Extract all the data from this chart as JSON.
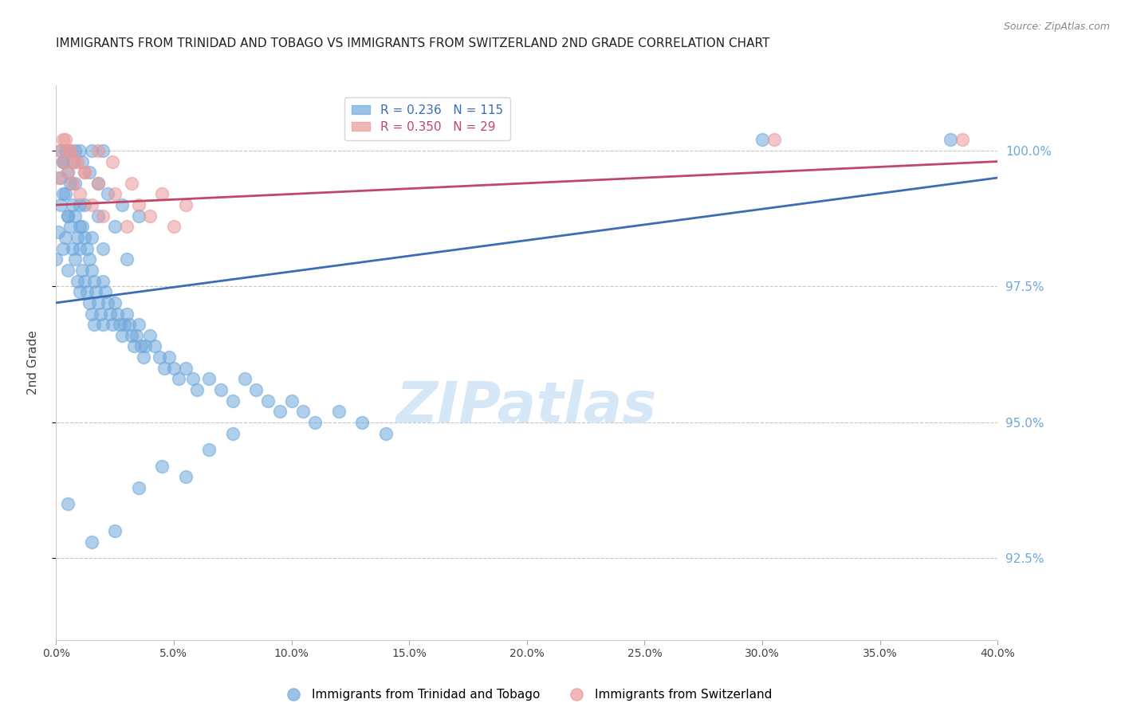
{
  "title": "IMMIGRANTS FROM TRINIDAD AND TOBAGO VS IMMIGRANTS FROM SWITZERLAND 2ND GRADE CORRELATION CHART",
  "source": "Source: ZipAtlas.com",
  "ylabel_left": "2nd Grade",
  "legend_label_blue": "Immigrants from Trinidad and Tobago",
  "legend_label_pink": "Immigrants from Switzerland",
  "R_blue": 0.236,
  "N_blue": 115,
  "R_pink": 0.35,
  "N_pink": 29,
  "x_min": 0.0,
  "x_max": 40.0,
  "y_min": 91.0,
  "y_max": 101.2,
  "y_ticks": [
    92.5,
    95.0,
    97.5,
    100.0
  ],
  "x_ticks": [
    0.0,
    5.0,
    10.0,
    15.0,
    20.0,
    25.0,
    30.0,
    35.0,
    40.0
  ],
  "color_blue": "#6fa8dc",
  "color_pink": "#ea9999",
  "color_blue_line": "#3d6cb5",
  "color_pink_line": "#c0476a",
  "color_right_axis": "#6fa8dc",
  "watermark_color": "#d6e8f7",
  "background": "#ffffff",
  "grid_color": "#c0c0c0",
  "blue_trend": [
    97.2,
    99.5
  ],
  "pink_trend": [
    99.0,
    99.8
  ],
  "blue_x": [
    0.0,
    0.1,
    0.2,
    0.2,
    0.3,
    0.3,
    0.4,
    0.4,
    0.5,
    0.5,
    0.5,
    0.6,
    0.6,
    0.7,
    0.7,
    0.8,
    0.8,
    0.9,
    0.9,
    1.0,
    1.0,
    1.0,
    1.1,
    1.1,
    1.2,
    1.2,
    1.3,
    1.3,
    1.4,
    1.4,
    1.5,
    1.5,
    1.6,
    1.6,
    1.7,
    1.8,
    1.9,
    2.0,
    2.0,
    2.1,
    2.2,
    2.3,
    2.4,
    2.5,
    2.6,
    2.7,
    2.8,
    2.9,
    3.0,
    3.1,
    3.2,
    3.3,
    3.4,
    3.5,
    3.6,
    3.7,
    3.8,
    4.0,
    4.2,
    4.4,
    4.6,
    4.8,
    5.0,
    5.2,
    5.5,
    5.8,
    6.0,
    6.5,
    7.0,
    7.5,
    8.0,
    8.5,
    9.0,
    9.5,
    10.0,
    10.5,
    11.0,
    12.0,
    13.0,
    14.0,
    0.3,
    0.5,
    0.8,
    1.0,
    1.2,
    1.5,
    1.8,
    2.0,
    2.5,
    3.0,
    0.2,
    0.4,
    0.6,
    0.8,
    1.0,
    1.5,
    2.0,
    0.3,
    0.7,
    1.1,
    1.4,
    1.8,
    2.2,
    2.8,
    3.5,
    30.0,
    38.0,
    0.5,
    1.5,
    2.5,
    3.5,
    4.5,
    5.5,
    6.5,
    7.5
  ],
  "blue_y": [
    98.0,
    98.5,
    99.0,
    99.5,
    98.2,
    99.8,
    98.4,
    99.2,
    97.8,
    98.8,
    99.6,
    98.6,
    99.4,
    98.2,
    99.0,
    98.0,
    98.8,
    97.6,
    98.4,
    97.4,
    98.2,
    99.0,
    97.8,
    98.6,
    97.6,
    98.4,
    97.4,
    98.2,
    97.2,
    98.0,
    97.0,
    97.8,
    96.8,
    97.6,
    97.4,
    97.2,
    97.0,
    96.8,
    97.6,
    97.4,
    97.2,
    97.0,
    96.8,
    97.2,
    97.0,
    96.8,
    96.6,
    96.8,
    97.0,
    96.8,
    96.6,
    96.4,
    96.6,
    96.8,
    96.4,
    96.2,
    96.4,
    96.6,
    96.4,
    96.2,
    96.0,
    96.2,
    96.0,
    95.8,
    96.0,
    95.8,
    95.6,
    95.8,
    95.6,
    95.4,
    95.8,
    95.6,
    95.4,
    95.2,
    95.4,
    95.2,
    95.0,
    95.2,
    95.0,
    94.8,
    99.2,
    98.8,
    99.4,
    98.6,
    99.0,
    98.4,
    98.8,
    98.2,
    98.6,
    98.0,
    100.0,
    100.0,
    100.0,
    100.0,
    100.0,
    100.0,
    100.0,
    99.8,
    99.8,
    99.8,
    99.6,
    99.4,
    99.2,
    99.0,
    98.8,
    100.2,
    100.2,
    93.5,
    92.8,
    93.0,
    93.8,
    94.2,
    94.0,
    94.5,
    94.8
  ],
  "pink_x": [
    0.1,
    0.2,
    0.3,
    0.4,
    0.5,
    0.6,
    0.7,
    0.8,
    1.0,
    1.2,
    1.5,
    1.8,
    2.0,
    2.5,
    3.0,
    3.5,
    4.0,
    4.5,
    5.0,
    5.5,
    0.3,
    0.6,
    0.9,
    1.2,
    1.8,
    2.4,
    3.2,
    30.5,
    38.5
  ],
  "pink_y": [
    99.5,
    100.0,
    99.8,
    100.2,
    99.6,
    100.0,
    99.4,
    99.8,
    99.2,
    99.6,
    99.0,
    99.4,
    98.8,
    99.2,
    98.6,
    99.0,
    98.8,
    99.2,
    98.6,
    99.0,
    100.2,
    100.0,
    99.8,
    99.6,
    100.0,
    99.8,
    99.4,
    100.2,
    100.2
  ]
}
